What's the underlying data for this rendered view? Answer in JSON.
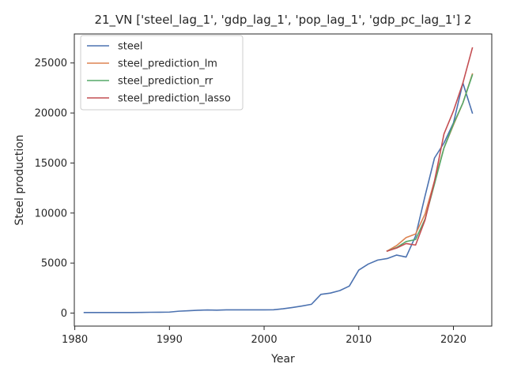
{
  "chart_data": {
    "type": "line",
    "title": "21_VN ['steel_lag_1', 'gdp_lag_1', 'pop_lag_1', 'gdp_pc_lag_1'] 2",
    "xlabel": "Year",
    "ylabel": "Steel production",
    "xlim": [
      1979.95,
      2024.05
    ],
    "ylim": [
      -1300,
      27900
    ],
    "xticks": [
      1980,
      1990,
      2000,
      2010,
      2020
    ],
    "yticks": [
      0,
      5000,
      10000,
      15000,
      20000,
      25000
    ],
    "grid": false,
    "legend_position": "top-left",
    "series": [
      {
        "name": "steel",
        "color": "#4c72b0",
        "x": [
          1981,
          1982,
          1983,
          1984,
          1985,
          1986,
          1987,
          1988,
          1989,
          1990,
          1991,
          1992,
          1993,
          1994,
          1995,
          1996,
          1997,
          1998,
          1999,
          2000,
          2001,
          2002,
          2003,
          2004,
          2005,
          2006,
          2007,
          2008,
          2009,
          2010,
          2011,
          2012,
          2013,
          2014,
          2015,
          2016,
          2017,
          2018,
          2019,
          2020,
          2021,
          2022
        ],
        "y": [
          60,
          60,
          60,
          60,
          60,
          60,
          70,
          80,
          90,
          100,
          190,
          230,
          280,
          310,
          290,
          320,
          320,
          320,
          320,
          320,
          330,
          430,
          560,
          710,
          880,
          1870,
          2000,
          2250,
          2700,
          4300,
          4900,
          5300,
          5450,
          5800,
          5600,
          7700,
          11700,
          15500,
          17000,
          19000,
          23000,
          20000
        ]
      },
      {
        "name": "steel_prediction_lm",
        "color": "#dd8452",
        "x": [
          2013,
          2014,
          2015,
          2016,
          2017,
          2018,
          2019,
          2020,
          2021,
          2022
        ],
        "y": [
          6200,
          6750,
          7550,
          7900,
          9900,
          13200,
          16500,
          18800,
          21000,
          23900
        ]
      },
      {
        "name": "steel_prediction_rr",
        "color": "#55a868",
        "x": [
          2013,
          2014,
          2015,
          2016,
          2017,
          2018,
          2019,
          2020,
          2021,
          2022
        ],
        "y": [
          6200,
          6550,
          7150,
          7350,
          9400,
          12900,
          16500,
          18900,
          21000,
          23800
        ]
      },
      {
        "name": "steel_prediction_lasso",
        "color": "#c44e52",
        "x": [
          2013,
          2014,
          2015,
          2016,
          2017,
          2018,
          2019,
          2020,
          2021,
          2022
        ],
        "y": [
          6200,
          6500,
          6950,
          6800,
          9300,
          13200,
          17900,
          20200,
          23000,
          26500
        ]
      }
    ]
  }
}
